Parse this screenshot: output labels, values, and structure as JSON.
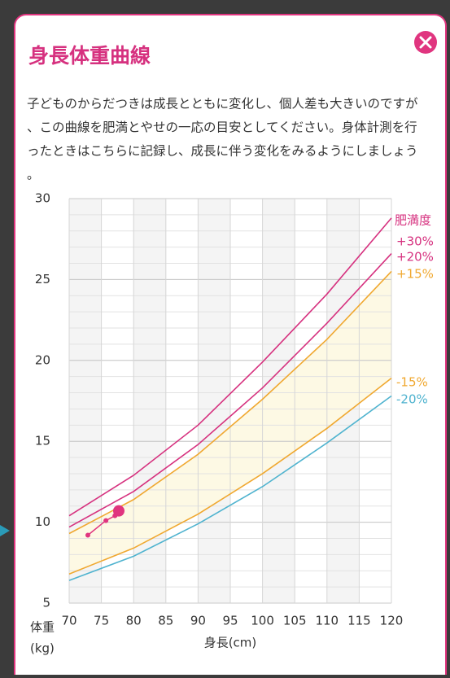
{
  "modal": {
    "title": "身長体重曲線",
    "description": [
      "子どものからだつきは成長とともに変化し、個人差も大きいのですが",
      "、この曲線を肥満とやせの一応の目安としてください。身体計測を行",
      "ったときはこちらに記録し、成長に伴う変化をみるようにしましょう",
      "。"
    ]
  },
  "chart_data": {
    "type": "line",
    "legend_title": "肥満度",
    "x_label": "身長(cm)",
    "y_label": [
      "体重",
      "(kg)"
    ],
    "x": [
      70,
      80,
      90,
      100,
      110,
      120
    ],
    "series": [
      {
        "name": "+30%",
        "color": "#d6317f",
        "values": [
          10.4,
          12.9,
          16.0,
          19.9,
          24.1,
          28.8
        ]
      },
      {
        "name": "+20%",
        "color": "#d6317f",
        "values": [
          9.7,
          11.9,
          14.8,
          18.3,
          22.3,
          26.6
        ]
      },
      {
        "name": "+15%",
        "color": "#f0a830",
        "values": [
          9.3,
          11.4,
          14.2,
          17.6,
          21.3,
          25.5
        ]
      },
      {
        "name": "-15%",
        "color": "#f0a830",
        "values": [
          6.8,
          8.4,
          10.5,
          13.0,
          15.8,
          18.9
        ]
      },
      {
        "name": "-20%",
        "color": "#4fb3cf",
        "values": [
          6.4,
          7.9,
          9.9,
          12.2,
          14.9,
          17.8
        ]
      }
    ],
    "measurements": {
      "color": "#e0357f",
      "x": [
        72.9,
        75.7,
        77.1,
        77.7
      ],
      "values": [
        9.2,
        10.1,
        10.4,
        10.7
      ]
    },
    "xlim": [
      70,
      120
    ],
    "xticks": [
      70,
      75,
      80,
      85,
      90,
      95,
      100,
      105,
      110,
      115,
      120
    ],
    "ylim": [
      5,
      30
    ],
    "yticks": [
      5,
      10,
      15,
      20,
      25,
      30
    ],
    "grid": true
  }
}
